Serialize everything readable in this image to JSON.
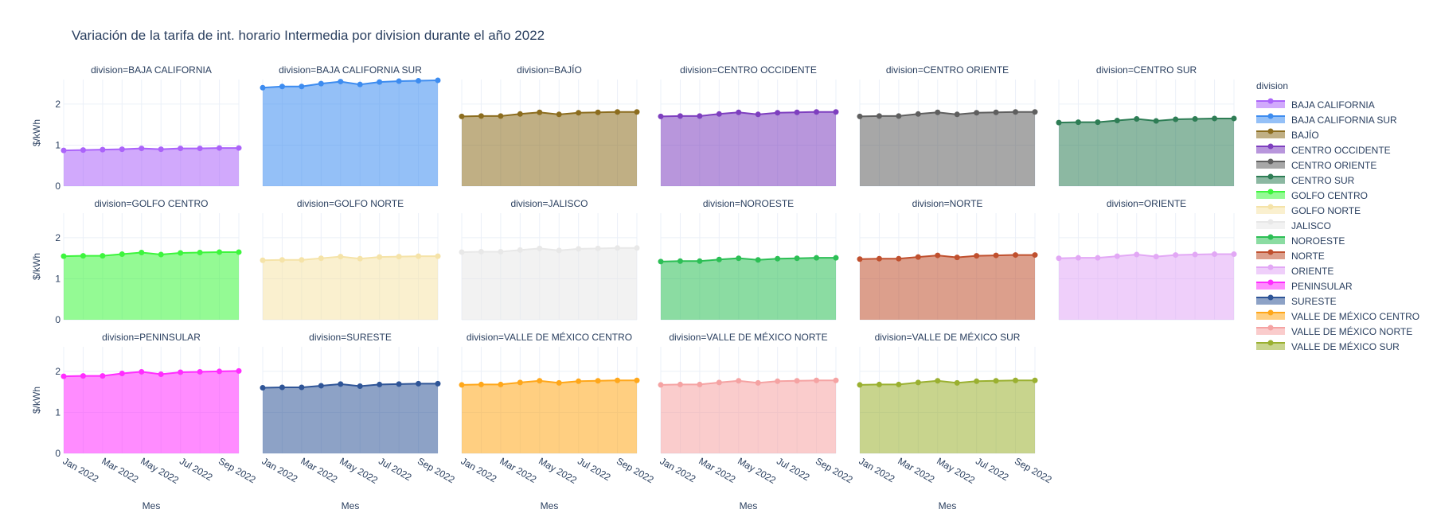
{
  "chart_data": {
    "type": "area",
    "title": "Variación de la tarifa de int. horario Intermedia por division durante el año 2022",
    "xlabel": "Mes",
    "ylabel": "$/kWh",
    "x": [
      "Jan 2022",
      "Feb 2022",
      "Mar 2022",
      "Apr 2022",
      "May 2022",
      "Jun 2022",
      "Jul 2022",
      "Aug 2022",
      "Sep 2022",
      "Oct 2022"
    ],
    "x_ticks": [
      "Jan 2022",
      "Mar 2022",
      "May 2022",
      "Jul 2022",
      "Sep 2022"
    ],
    "y_ticks": [
      "0",
      "1",
      "2"
    ],
    "ylim": [
      0,
      2.6
    ],
    "grid": true,
    "legend": {
      "title": "division",
      "placement": "right"
    },
    "series": [
      {
        "name": "BAJA CALIFORNIA",
        "facet_label": "division=BAJA CALIFORNIA",
        "color": "#AB63FA",
        "values": [
          0.87,
          0.88,
          0.89,
          0.9,
          0.92,
          0.9,
          0.92,
          0.92,
          0.93,
          0.93
        ]
      },
      {
        "name": "BAJA CALIFORNIA SUR",
        "facet_label": "division=BAJA CALIFORNIA SUR",
        "color": "#3D8CF0",
        "values": [
          2.4,
          2.43,
          2.43,
          2.5,
          2.55,
          2.48,
          2.54,
          2.56,
          2.57,
          2.58
        ]
      },
      {
        "name": "BAJÍO",
        "facet_label": "division=BAJÍO",
        "color": "#8C6D1F",
        "values": [
          1.7,
          1.71,
          1.71,
          1.76,
          1.8,
          1.75,
          1.79,
          1.8,
          1.81,
          1.81
        ]
      },
      {
        "name": "CENTRO OCCIDENTE",
        "facet_label": "division=CENTRO OCCIDENTE",
        "color": "#7E3FBF",
        "values": [
          1.7,
          1.71,
          1.71,
          1.76,
          1.8,
          1.75,
          1.79,
          1.8,
          1.81,
          1.81
        ]
      },
      {
        "name": "CENTRO ORIENTE",
        "facet_label": "division=CENTRO ORIENTE",
        "color": "#5F5F5F",
        "values": [
          1.7,
          1.71,
          1.71,
          1.76,
          1.8,
          1.75,
          1.79,
          1.8,
          1.81,
          1.81
        ]
      },
      {
        "name": "CENTRO SUR",
        "facet_label": "division=CENTRO SUR",
        "color": "#2E7D55",
        "values": [
          1.55,
          1.56,
          1.56,
          1.6,
          1.64,
          1.59,
          1.63,
          1.64,
          1.65,
          1.65
        ]
      },
      {
        "name": "GOLFO CENTRO",
        "facet_label": "division=GOLFO CENTRO",
        "color": "#3DF53D",
        "values": [
          1.55,
          1.56,
          1.56,
          1.6,
          1.64,
          1.59,
          1.63,
          1.64,
          1.65,
          1.65
        ]
      },
      {
        "name": "GOLFO NORTE",
        "facet_label": "division=GOLFO NORTE",
        "color": "#F5E3A8",
        "values": [
          1.45,
          1.46,
          1.46,
          1.5,
          1.54,
          1.49,
          1.53,
          1.54,
          1.55,
          1.55
        ]
      },
      {
        "name": "JALISCO",
        "facet_label": "division=JALISCO",
        "color": "#E8E8E8",
        "values": [
          1.65,
          1.66,
          1.66,
          1.7,
          1.74,
          1.69,
          1.73,
          1.74,
          1.75,
          1.75
        ]
      },
      {
        "name": "NOROESTE",
        "facet_label": "division=NOROESTE",
        "color": "#2CBF55",
        "values": [
          1.42,
          1.43,
          1.43,
          1.47,
          1.5,
          1.46,
          1.49,
          1.5,
          1.51,
          1.51
        ]
      },
      {
        "name": "NORTE",
        "facet_label": "division=NORTE",
        "color": "#C0502E",
        "values": [
          1.48,
          1.49,
          1.49,
          1.53,
          1.57,
          1.52,
          1.56,
          1.57,
          1.58,
          1.58
        ]
      },
      {
        "name": "ORIENTE",
        "facet_label": "division=ORIENTE",
        "color": "#E2A8F5",
        "values": [
          1.5,
          1.51,
          1.51,
          1.55,
          1.59,
          1.54,
          1.58,
          1.59,
          1.6,
          1.6
        ]
      },
      {
        "name": "PENINSULAR",
        "facet_label": "division=PENINSULAR",
        "color": "#FF2DFF",
        "values": [
          1.88,
          1.89,
          1.89,
          1.95,
          1.99,
          1.93,
          1.98,
          1.99,
          2.0,
          2.01
        ]
      },
      {
        "name": "SURESTE",
        "facet_label": "division=SURESTE",
        "color": "#2F5597",
        "values": [
          1.6,
          1.61,
          1.61,
          1.65,
          1.69,
          1.64,
          1.68,
          1.69,
          1.7,
          1.7
        ]
      },
      {
        "name": "VALLE DE MÉXICO CENTRO",
        "facet_label": "division=VALLE DE MÉXICO CENTRO",
        "color": "#FFA71A",
        "values": [
          1.67,
          1.68,
          1.68,
          1.73,
          1.77,
          1.72,
          1.76,
          1.77,
          1.78,
          1.78
        ]
      },
      {
        "name": "VALLE DE MÉXICO NORTE",
        "facet_label": "division=VALLE DE MÉXICO NORTE",
        "color": "#F5A3A3",
        "values": [
          1.67,
          1.68,
          1.68,
          1.73,
          1.77,
          1.72,
          1.76,
          1.77,
          1.78,
          1.78
        ]
      },
      {
        "name": "VALLE DE MÉXICO SUR",
        "facet_label": "division=VALLE DE MÉXICO SUR",
        "color": "#9AB030",
        "values": [
          1.67,
          1.68,
          1.68,
          1.73,
          1.77,
          1.72,
          1.76,
          1.77,
          1.78,
          1.78
        ]
      }
    ]
  }
}
